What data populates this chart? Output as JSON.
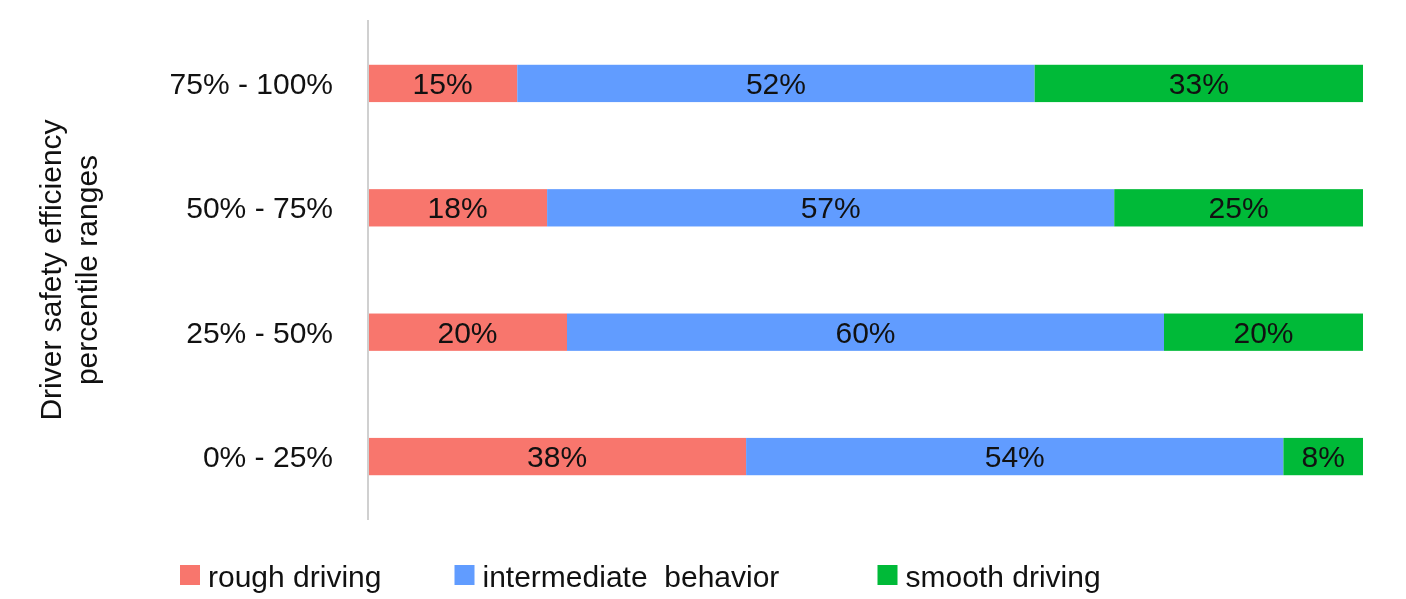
{
  "chart_data": {
    "type": "bar",
    "orientation": "horizontal",
    "stacked": true,
    "ylabel": "Driver safety efficiency percentile ranges",
    "categories": [
      "75% - 100%",
      "50% - 75%",
      "25% - 50%",
      "0% - 25%"
    ],
    "series": [
      {
        "name": "rough driving",
        "color": "#f8766d",
        "values": [
          15,
          18,
          20,
          38
        ],
        "value_labels": [
          "15%",
          "18%",
          "20%",
          "38%"
        ]
      },
      {
        "name": "intermediate  behavior",
        "color": "#619cff",
        "values": [
          52,
          57,
          60,
          54
        ],
        "value_labels": [
          "52%",
          "57%",
          "60%",
          "54%"
        ]
      },
      {
        "name": "smooth driving",
        "color": "#00ba38",
        "values": [
          33,
          25,
          20,
          8
        ],
        "value_labels": [
          "33%",
          "25%",
          "20%",
          "8%"
        ]
      }
    ],
    "legend": "bottom",
    "grid": false
  }
}
